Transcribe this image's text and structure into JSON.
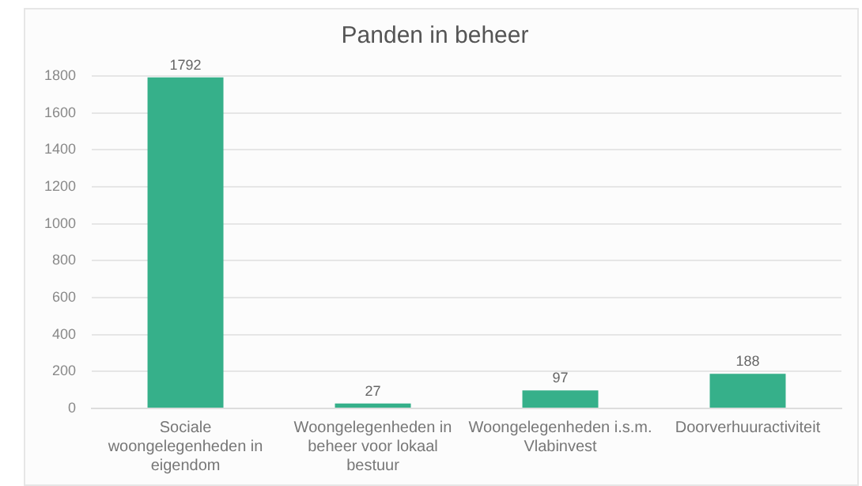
{
  "chart_data": {
    "type": "bar",
    "title": "Panden in beheer",
    "categories": [
      "Sociale woongelegenheden in eigendom",
      "Woongelegenheden in beheer voor lokaal bestuur",
      "Woongelegenheden i.s.m. Vlabinvest",
      "Doorverhuuractiviteit"
    ],
    "values": [
      1792,
      27,
      97,
      188
    ],
    "color": "#36b08a",
    "ylim": [
      0,
      1800
    ],
    "yticks": [
      0,
      200,
      400,
      600,
      800,
      1000,
      1200,
      1400,
      1600,
      1800
    ],
    "grid": "y",
    "legend": false,
    "data_labels": true
  }
}
